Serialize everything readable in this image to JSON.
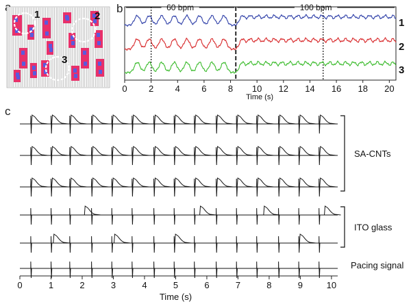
{
  "panels": {
    "a": {
      "letter": "a",
      "site_labels": [
        "1",
        "2",
        "3"
      ]
    },
    "b": {
      "letter": "b"
    },
    "c": {
      "letter": "c"
    }
  },
  "chart_data": [
    {
      "type": "line",
      "panel": "b",
      "xlabel": "Time (s)",
      "xlim": [
        0,
        20.5
      ],
      "x_ticks": [
        0,
        2,
        4,
        6,
        8,
        10,
        12,
        14,
        16,
        18,
        20
      ],
      "annotations": [
        {
          "text": "60 bpm",
          "x_from": 0,
          "x_to": 8.4
        },
        {
          "text": "100 bpm",
          "x_from": 8.4,
          "x_to": 20.5
        }
      ],
      "markers_x": [
        2.0,
        8.4,
        15.0
      ],
      "series": [
        {
          "name": "1",
          "color": "#2e3fa8",
          "beats_x": [
            0.95,
            1.85,
            2.8,
            3.75,
            4.7,
            5.65,
            6.6,
            7.5,
            8.9,
            9.5,
            10.1,
            10.7,
            11.3,
            11.9,
            12.5,
            13.1,
            13.7,
            14.3,
            14.9,
            15.5,
            16.1,
            16.7,
            17.3,
            17.9,
            18.5,
            19.1,
            19.7,
            20.3
          ]
        },
        {
          "name": "2",
          "color": "#d8282a",
          "beats_x": [
            0.95,
            1.85,
            2.8,
            3.75,
            4.7,
            5.65,
            6.6,
            7.5,
            8.9,
            9.5,
            10.1,
            10.7,
            11.3,
            11.9,
            12.5,
            13.1,
            13.7,
            14.3,
            14.9,
            15.5,
            16.1,
            16.7,
            17.3,
            17.9,
            18.5,
            19.1,
            19.7,
            20.3
          ]
        },
        {
          "name": "3",
          "color": "#3bbb2c",
          "beats_x": [
            0.95,
            1.85,
            2.8,
            3.75,
            4.7,
            5.65,
            6.6,
            7.5,
            8.9,
            9.5,
            10.1,
            10.7,
            11.3,
            11.9,
            12.5,
            13.1,
            13.7,
            14.3,
            14.9,
            15.5,
            16.1,
            16.7,
            17.3,
            17.9,
            18.5,
            19.1,
            19.7,
            20.3
          ]
        }
      ]
    },
    {
      "type": "line",
      "panel": "c",
      "xlabel": "Time (s)",
      "xlim": [
        0,
        10.2
      ],
      "x_ticks": [
        0,
        1,
        2,
        3,
        4,
        5,
        6,
        7,
        8,
        9,
        10
      ],
      "pacing_x": [
        0.35,
        1.0,
        1.6,
        2.3,
        2.95,
        3.6,
        4.3,
        4.95,
        5.6,
        6.3,
        6.95,
        7.6,
        8.3,
        8.95,
        9.6
      ],
      "group_labels": [
        {
          "text": "SA-CNTs",
          "rows": [
            0,
            2
          ]
        },
        {
          "text": "ITO glass",
          "rows": [
            3,
            4
          ]
        },
        {
          "text": "Pacing signal",
          "rows": [
            5,
            5
          ]
        }
      ],
      "series": [
        {
          "group": "SA-CNTs",
          "response_x": [
            0.35,
            1.0,
            1.6,
            2.3,
            2.95,
            3.6,
            4.3,
            4.95,
            5.6,
            6.3,
            6.95,
            7.6,
            8.3,
            8.95,
            9.6
          ]
        },
        {
          "group": "SA-CNTs",
          "response_x": [
            0.35,
            1.0,
            1.6,
            2.3,
            2.95,
            3.6,
            4.3,
            4.95,
            5.6,
            6.3,
            6.95,
            7.6,
            8.3,
            8.95,
            9.6
          ]
        },
        {
          "group": "SA-CNTs",
          "response_x": [
            0.35,
            1.0,
            1.6,
            2.3,
            2.95,
            3.6,
            4.3,
            4.95,
            5.6,
            6.3,
            6.95,
            7.6,
            8.3,
            8.95,
            9.6
          ]
        },
        {
          "group": "ITO glass",
          "response_x": [
            2.05,
            5.75,
            7.8,
            9.75
          ]
        },
        {
          "group": "ITO glass",
          "response_x": [
            1.05,
            3.0,
            4.95,
            8.95
          ]
        },
        {
          "group": "Pacing signal",
          "response_x": []
        }
      ]
    }
  ]
}
